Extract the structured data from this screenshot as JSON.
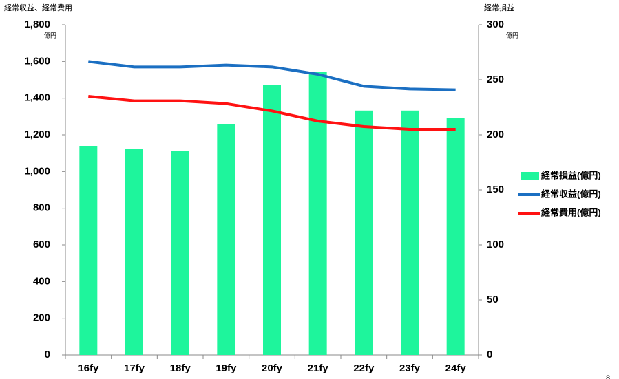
{
  "chart_data": {
    "type": "bar-line",
    "y_label": "経常収益、経常費用",
    "y_unit": "億円",
    "y2_label": "経常損益",
    "y2_unit": "億円",
    "page_number": "8",
    "categories": [
      "16fy",
      "17fy",
      "18fy",
      "19fy",
      "20fy",
      "21fy",
      "22fy",
      "23fy",
      "24fy"
    ],
    "series": [
      {
        "name": "経常損益(億円)",
        "type": "bar",
        "axis": "y2",
        "color": "#1ef59c",
        "values": [
          190,
          187,
          185,
          210,
          245,
          257,
          222,
          222,
          215
        ]
      },
      {
        "name": "経常収益(億円)",
        "type": "line",
        "color": "#1b6fc2",
        "values": [
          1600,
          1570,
          1570,
          1580,
          1570,
          1530,
          1465,
          1450,
          1445
        ]
      },
      {
        "name": "経常費用(億円)",
        "type": "line",
        "color": "#ff1212",
        "values": [
          1410,
          1385,
          1385,
          1370,
          1330,
          1275,
          1245,
          1230,
          1230
        ]
      }
    ],
    "ylim": [
      0,
      1800
    ],
    "yticks": [
      0,
      200,
      400,
      600,
      800,
      {
        "value": 1000,
        "label": "1,000"
      },
      {
        "value": 1200,
        "label": "1,200"
      },
      {
        "value": 1400,
        "label": "1,400"
      },
      {
        "value": 1600,
        "label": "1,600"
      },
      {
        "value": 1800,
        "label": "1,800"
      }
    ],
    "y2lim": [
      0,
      300
    ],
    "y2ticks": [
      0,
      50,
      100,
      150,
      200,
      250,
      300
    ],
    "legend": "right"
  }
}
